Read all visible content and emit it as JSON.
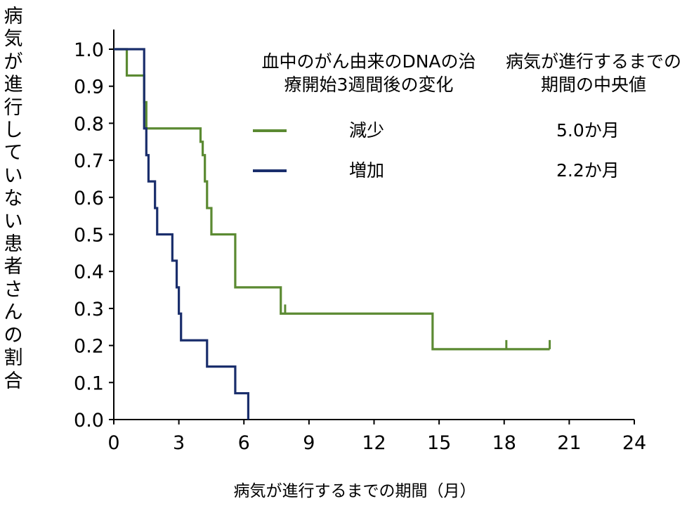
{
  "chart_data": {
    "type": "line",
    "ylabel": "病気が進行していない患者さんの割合",
    "xlabel": "病気が進行するまでの期間（月）",
    "xlim": [
      0,
      24
    ],
    "ylim": [
      0,
      1
    ],
    "x_ticks": [
      "0",
      "3",
      "6",
      "9",
      "12",
      "15",
      "18",
      "21",
      "24"
    ],
    "y_ticks": [
      "0.0",
      "0.1",
      "0.2",
      "0.3",
      "0.4",
      "0.5",
      "0.6",
      "0.7",
      "0.8",
      "0.9",
      "1.0"
    ],
    "legend": {
      "header_group": "血中のがん由来のDNAの治療開始3週間後の変化",
      "header_median": "病気が進行するまでの期間の中央値"
    },
    "series": [
      {
        "name": "減少",
        "median": "5.0か月",
        "color": "#5b8a32",
        "steps": [
          [
            0,
            1.0
          ],
          [
            0.6,
            0.929
          ],
          [
            1.4,
            0.857
          ],
          [
            1.5,
            0.786
          ],
          [
            4.0,
            0.75
          ],
          [
            4.1,
            0.714
          ],
          [
            4.2,
            0.643
          ],
          [
            4.3,
            0.571
          ],
          [
            4.5,
            0.5
          ],
          [
            5.6,
            0.357
          ],
          [
            7.7,
            0.286
          ],
          [
            14.7,
            0.19
          ],
          [
            20.1,
            0.19
          ]
        ],
        "censored": [
          [
            7.9,
            0.286
          ],
          [
            18.1,
            0.19
          ],
          [
            20.1,
            0.19
          ]
        ]
      },
      {
        "name": "増加",
        "median": "2.2か月",
        "color": "#1a2e6c",
        "steps": [
          [
            0,
            1.0
          ],
          [
            1.4,
            0.786
          ],
          [
            1.5,
            0.714
          ],
          [
            1.6,
            0.643
          ],
          [
            1.9,
            0.571
          ],
          [
            2.0,
            0.5
          ],
          [
            2.7,
            0.429
          ],
          [
            2.9,
            0.357
          ],
          [
            3.0,
            0.286
          ],
          [
            3.1,
            0.214
          ],
          [
            4.3,
            0.143
          ],
          [
            5.6,
            0.071
          ],
          [
            6.2,
            0.0
          ]
        ],
        "censored": []
      }
    ]
  }
}
